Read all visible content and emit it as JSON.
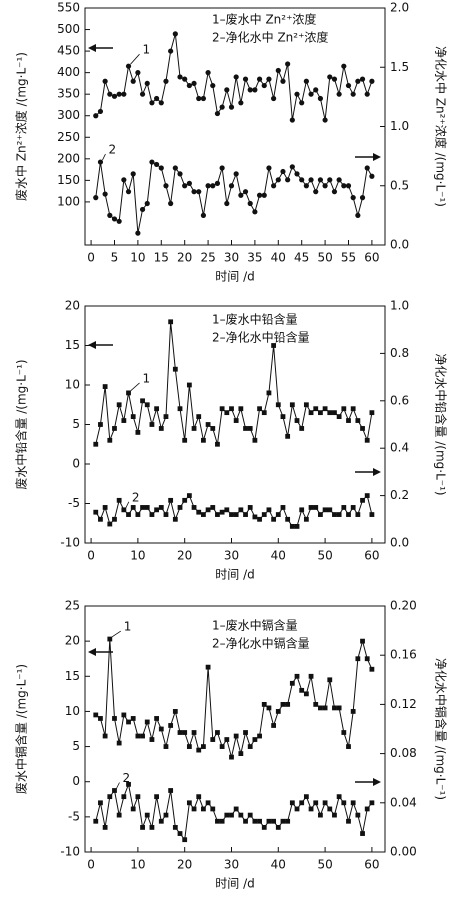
{
  "chart_data": [
    {
      "type": "line",
      "xlabel": "时间 /d",
      "ylabel": "废水中 Zn²⁺浓度 /(mg·L⁻¹)",
      "y2label": "净化水中 Zn²⁺浓度 /(mg·L⁻¹)",
      "x": [
        1,
        2,
        3,
        4,
        5,
        6,
        7,
        8,
        9,
        10,
        11,
        12,
        13,
        14,
        15,
        16,
        17,
        18,
        19,
        20,
        21,
        22,
        23,
        24,
        25,
        26,
        27,
        28,
        29,
        30,
        31,
        32,
        33,
        34,
        35,
        36,
        37,
        38,
        39,
        40,
        41,
        42,
        43,
        44,
        45,
        46,
        47,
        48,
        49,
        50,
        51,
        52,
        53,
        54,
        55,
        56,
        57,
        58,
        59,
        60
      ],
      "xlim": [
        -1.3,
        62.8
      ],
      "xticks": [
        0,
        5,
        10,
        15,
        20,
        25,
        30,
        35,
        40,
        45,
        50,
        55,
        60
      ],
      "ylim": [
        0,
        550
      ],
      "yticks": [
        100,
        150,
        200,
        250,
        300,
        350,
        400,
        450,
        500,
        550
      ],
      "y2lim": [
        0,
        2
      ],
      "y2ticks": [
        {
          "value": 0,
          "label": "0.0"
        },
        0.5,
        {
          "value": 1,
          "label": "1.0"
        },
        1.5,
        {
          "value": 2,
          "label": "2.0"
        }
      ],
      "annotations": [
        "1",
        "2"
      ],
      "series": [
        {
          "name": "1–废水中 Zn²⁺浓度",
          "color": "#111111",
          "marker": "circle",
          "values": [
            300,
            310,
            380,
            350,
            345,
            350,
            350,
            415,
            380,
            400,
            350,
            375,
            330,
            340,
            330,
            380,
            450,
            490,
            390,
            385,
            370,
            375,
            340,
            340,
            400,
            370,
            305,
            320,
            360,
            320,
            390,
            330,
            385,
            360,
            360,
            385,
            370,
            385,
            340,
            405,
            380,
            420,
            290,
            350,
            330,
            380,
            350,
            360,
            340,
            290,
            390,
            385,
            350,
            415,
            370,
            350,
            380,
            385,
            350,
            380
          ]
        },
        {
          "name": "2–净化水中 Zn²⁺浓度",
          "color": "#111111",
          "marker": "circle",
          "axis": "y2",
          "values": [
            0.4,
            0.7,
            0.43,
            0.25,
            0.22,
            0.2,
            0.55,
            0.45,
            0.6,
            0.1,
            0.3,
            0.35,
            0.7,
            0.68,
            0.65,
            0.5,
            0.35,
            0.65,
            0.6,
            0.5,
            0.52,
            0.45,
            0.45,
            0.25,
            0.5,
            0.5,
            0.52,
            0.65,
            0.35,
            0.5,
            0.6,
            0.42,
            0.45,
            0.35,
            0.28,
            0.42,
            0.42,
            0.65,
            0.5,
            0.55,
            0.62,
            0.55,
            0.66,
            0.6,
            0.55,
            0.5,
            0.55,
            0.45,
            0.55,
            0.5,
            0.55,
            0.45,
            0.55,
            0.5,
            0.5,
            0.4,
            0.25,
            0.4,
            0.65,
            0.58
          ]
        }
      ]
    },
    {
      "type": "line",
      "xlabel": "时间 /d",
      "ylabel": "废水中铅含量 /(mg·L⁻¹)",
      "y2label": "净化水中铅含量 /(mg·L⁻¹)",
      "x": [
        1,
        2,
        3,
        4,
        5,
        6,
        7,
        8,
        9,
        10,
        11,
        12,
        13,
        14,
        15,
        16,
        17,
        18,
        19,
        20,
        21,
        22,
        23,
        24,
        25,
        26,
        27,
        28,
        29,
        30,
        31,
        32,
        33,
        34,
        35,
        36,
        37,
        38,
        39,
        40,
        41,
        42,
        43,
        44,
        45,
        46,
        47,
        48,
        49,
        50,
        51,
        52,
        53,
        54,
        55,
        56,
        57,
        58,
        59,
        60
      ],
      "xlim": [
        -1.3,
        62.8
      ],
      "xticks": [
        0,
        10,
        20,
        30,
        40,
        50,
        60
      ],
      "ylim": [
        -10,
        20
      ],
      "yticks": [
        -10,
        -5,
        0,
        5,
        10,
        15,
        20
      ],
      "y2lim": [
        0,
        1
      ],
      "y2ticks": [
        {
          "value": 0,
          "label": "0.0"
        },
        0.2,
        0.4,
        0.6,
        0.8,
        {
          "value": 1,
          "label": "1.0"
        }
      ],
      "annotations": [
        "1",
        "2"
      ],
      "series": [
        {
          "name": "1–废水中铅含量",
          "color": "#111111",
          "marker": "square",
          "values": [
            2.5,
            5,
            9.8,
            3,
            4.5,
            7.5,
            5.5,
            9,
            6,
            4,
            8,
            7.5,
            5,
            7,
            4.5,
            6,
            18,
            12,
            7,
            3,
            10,
            4.5,
            6,
            3,
            5,
            4.5,
            2.5,
            7,
            6.5,
            7,
            5.5,
            7,
            4.5,
            4.5,
            3,
            7,
            6.5,
            9,
            15,
            7.5,
            6,
            3.5,
            7.5,
            5.5,
            4.5,
            7.5,
            6.5,
            7,
            6.5,
            7,
            6.5,
            6.5,
            6,
            7,
            5.5,
            7,
            5.5,
            4.5,
            3,
            6.5
          ]
        },
        {
          "name": "2–净化水中铅含量",
          "color": "#111111",
          "marker": "square",
          "axis": "y2",
          "values": [
            0.13,
            0.1,
            0.15,
            0.08,
            0.1,
            0.18,
            0.14,
            0.12,
            0.15,
            0.12,
            0.15,
            0.15,
            0.12,
            0.14,
            0.15,
            0.12,
            0.18,
            0.1,
            0.15,
            0.18,
            0.2,
            0.15,
            0.13,
            0.12,
            0.14,
            0.15,
            0.12,
            0.13,
            0.14,
            0.12,
            0.12,
            0.14,
            0.12,
            0.15,
            0.11,
            0.1,
            0.12,
            0.14,
            0.1,
            0.12,
            0.15,
            0.1,
            0.07,
            0.07,
            0.14,
            0.1,
            0.15,
            0.15,
            0.12,
            0.14,
            0.14,
            0.12,
            0.12,
            0.15,
            0.12,
            0.15,
            0.12,
            0.18,
            0.2,
            0.12
          ]
        }
      ]
    },
    {
      "type": "line",
      "xlabel": "时间 /d",
      "ylabel": "废水中镉含量 /(mg·L⁻¹)",
      "y2label": "净化水中镉含量 /(mg·L⁻¹)",
      "x": [
        1,
        2,
        3,
        4,
        5,
        6,
        7,
        8,
        9,
        10,
        11,
        12,
        13,
        14,
        15,
        16,
        17,
        18,
        19,
        20,
        21,
        22,
        23,
        24,
        25,
        26,
        27,
        28,
        29,
        30,
        31,
        32,
        33,
        34,
        35,
        36,
        37,
        38,
        39,
        40,
        41,
        42,
        43,
        44,
        45,
        46,
        47,
        48,
        49,
        50,
        51,
        52,
        53,
        54,
        55,
        56,
        57,
        58,
        59,
        60
      ],
      "xlim": [
        -1.3,
        62.8
      ],
      "xticks": [
        0,
        10,
        20,
        30,
        40,
        50,
        60
      ],
      "ylim": [
        -10,
        25
      ],
      "yticks": [
        -10,
        -5,
        0,
        5,
        10,
        15,
        20,
        25
      ],
      "y2lim": [
        0,
        0.2
      ],
      "y2ticks": [
        {
          "value": 0,
          "label": "0.00"
        },
        {
          "value": 0.04,
          "label": "0.04"
        },
        {
          "value": 0.08,
          "label": "0.08"
        },
        {
          "value": 0.12,
          "label": "0.12"
        },
        {
          "value": 0.16,
          "label": "0.16"
        },
        {
          "value": 0.2,
          "label": "0.20"
        }
      ],
      "annotations": [
        "1",
        "2"
      ],
      "series": [
        {
          "name": "1–废水中镉含量",
          "color": "#111111",
          "marker": "square",
          "values": [
            9.5,
            9,
            6.5,
            20.3,
            9,
            5.5,
            9.5,
            8.5,
            9,
            6.5,
            6.5,
            8.5,
            6,
            9,
            7.5,
            5,
            8,
            10,
            7,
            7,
            5,
            7,
            4.5,
            5,
            16.3,
            6,
            7,
            5,
            6,
            3.5,
            6.5,
            4,
            7,
            5,
            6,
            6.5,
            11,
            10.5,
            8,
            10,
            11,
            11,
            14,
            15,
            13,
            12.5,
            15,
            11,
            10.5,
            10.5,
            14.5,
            10.5,
            10.5,
            7,
            5,
            10,
            17.5,
            20,
            17.5,
            16
          ]
        },
        {
          "name": "2–净化水中镉含量",
          "color": "#111111",
          "marker": "square",
          "axis": "y2",
          "values": [
            0.025,
            0.04,
            0.02,
            0.045,
            0.05,
            0.03,
            0.045,
            0.055,
            0.035,
            0.045,
            0.02,
            0.03,
            0.02,
            0.045,
            0.025,
            0.03,
            0.05,
            0.02,
            0.015,
            0.01,
            0.04,
            0.035,
            0.045,
            0.035,
            0.04,
            0.035,
            0.025,
            0.025,
            0.03,
            0.03,
            0.035,
            0.03,
            0.025,
            0.03,
            0.025,
            0.025,
            0.02,
            0.025,
            0.025,
            0.02,
            0.025,
            0.025,
            0.04,
            0.035,
            0.04,
            0.045,
            0.035,
            0.04,
            0.03,
            0.04,
            0.035,
            0.03,
            0.045,
            0.04,
            0.025,
            0.04,
            0.03,
            0.015,
            0.035,
            0.04
          ]
        }
      ]
    }
  ]
}
